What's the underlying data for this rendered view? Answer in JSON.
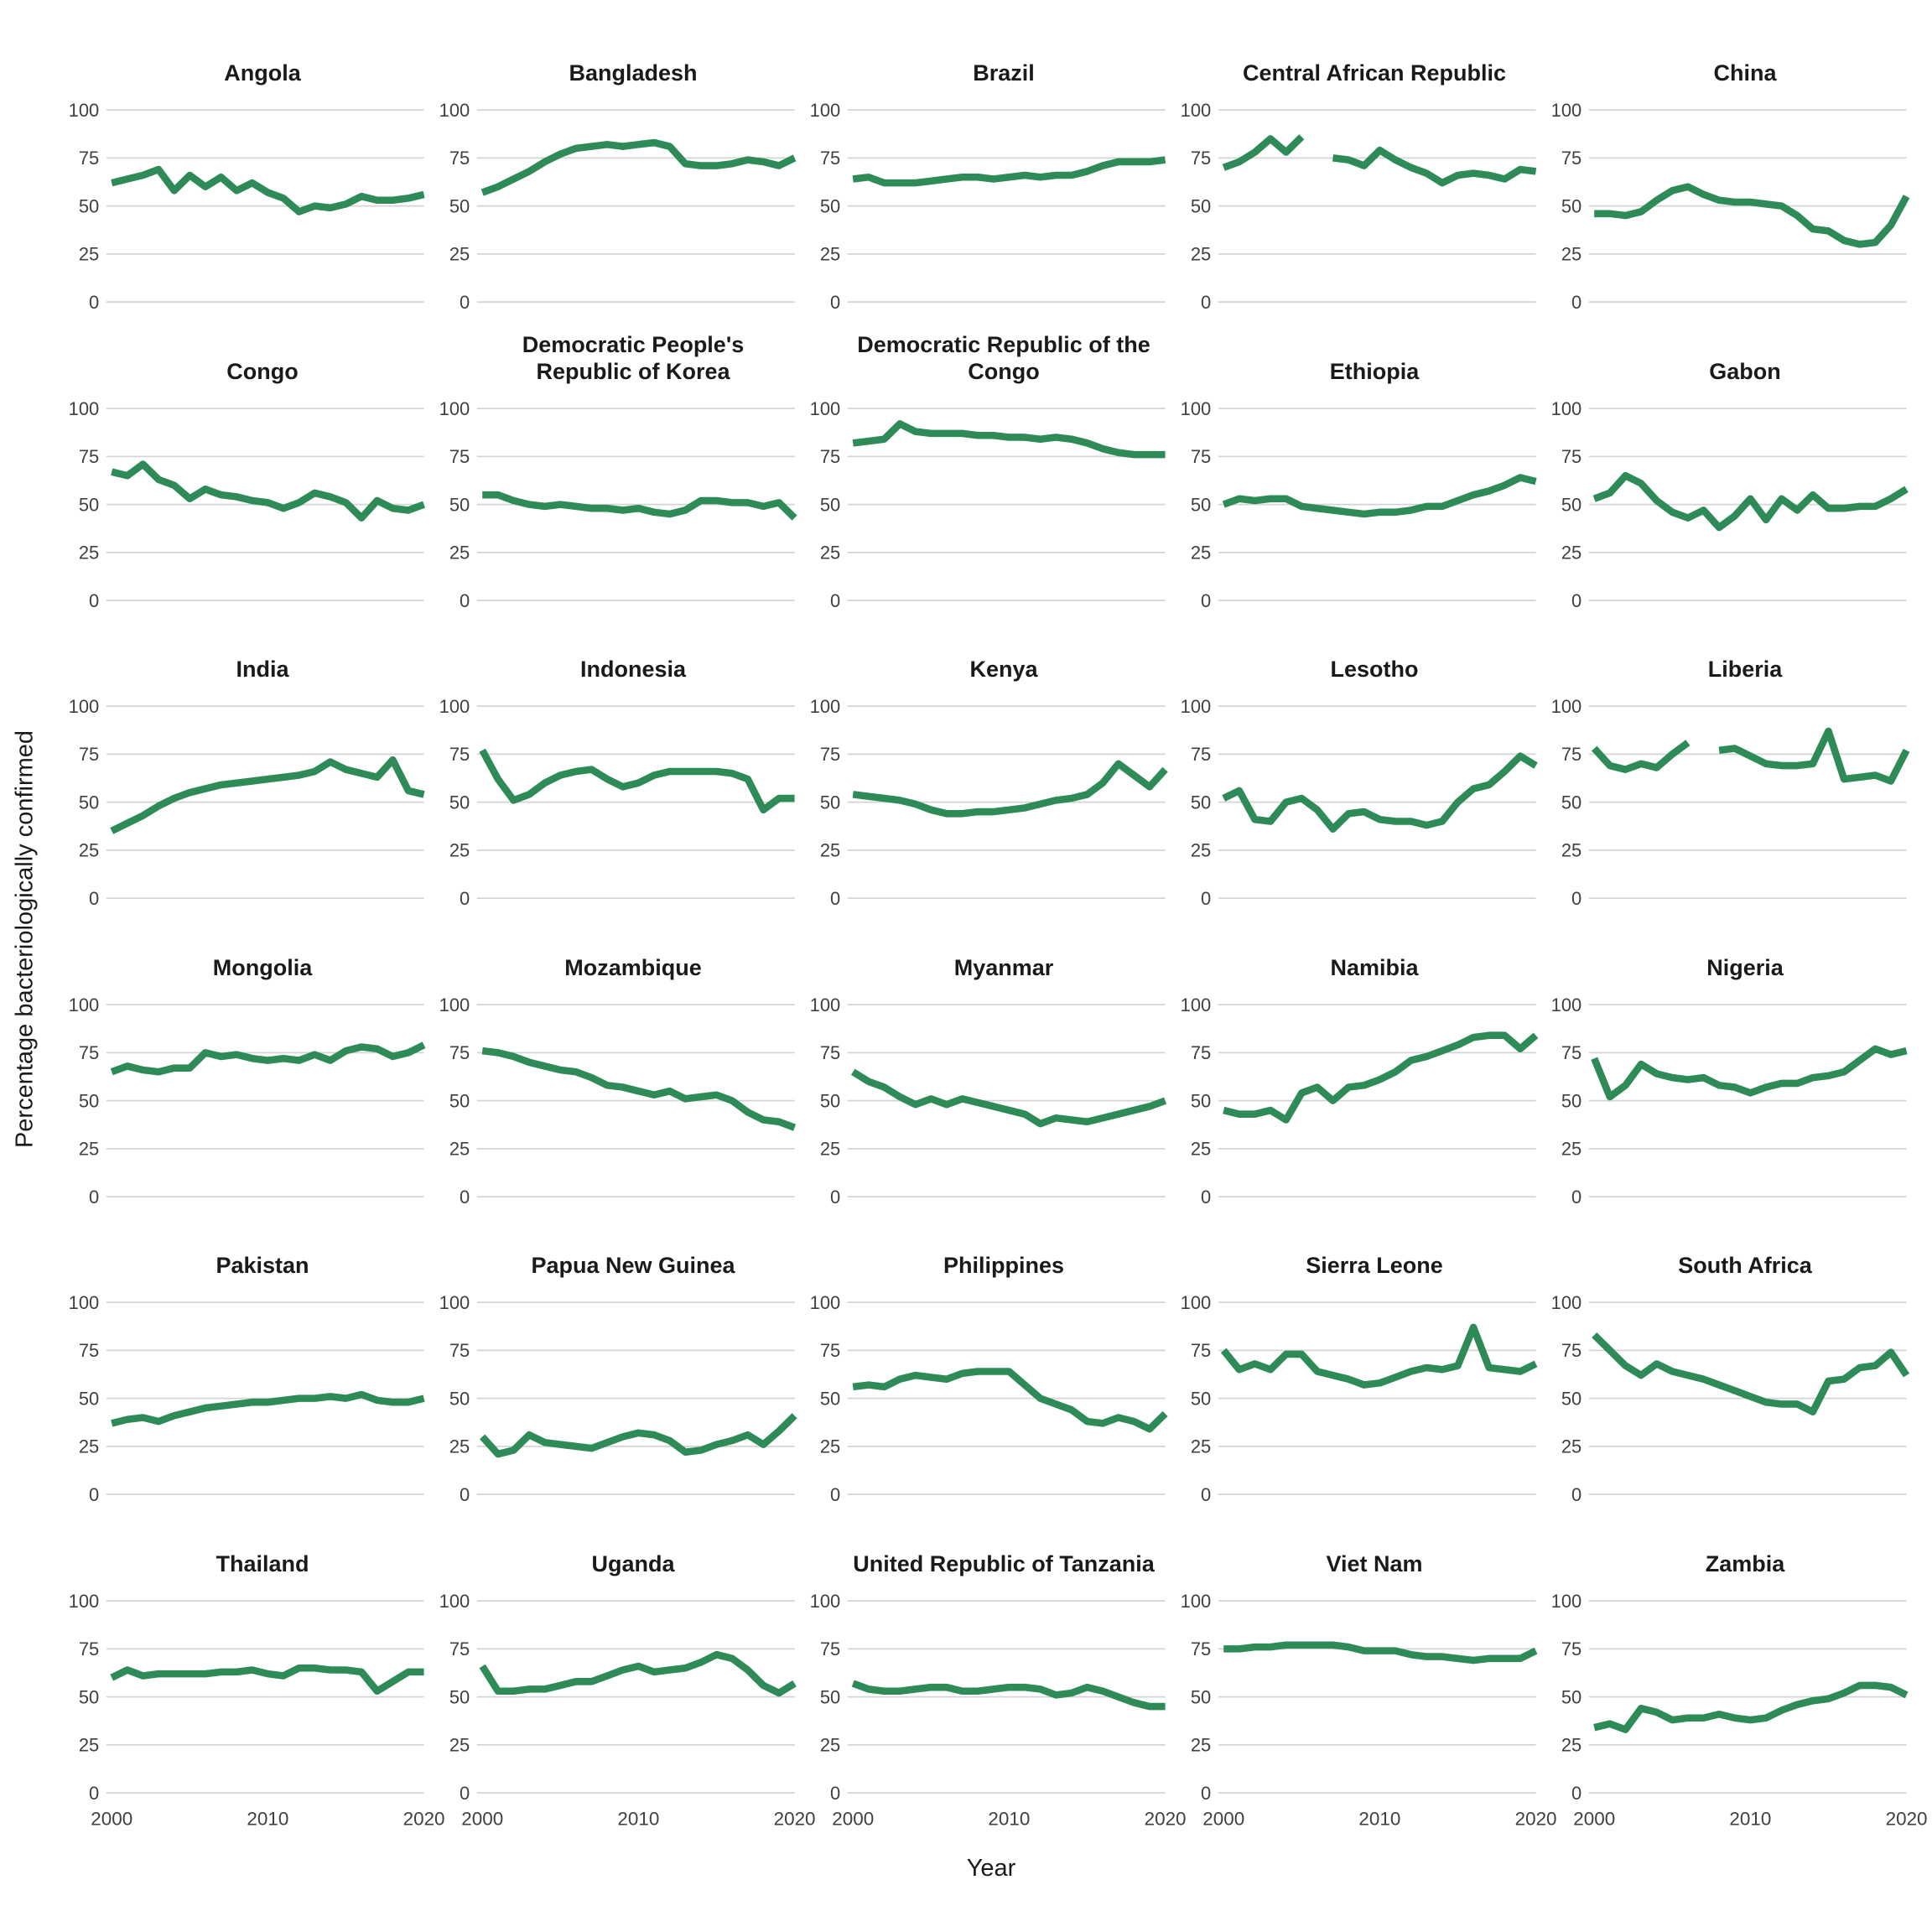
{
  "chart": {
    "ylabel": "Percentage bacteriologically confirmed",
    "xlabel": "Year",
    "line_color": "#2e8b57",
    "grid_color": "#d4d4d4",
    "tick_color": "#404040",
    "title_color": "#1a1a1a"
  },
  "chart_data": {
    "type": "line",
    "layout": "facet-grid 5 cols x 6 rows, one panel per country",
    "title": "",
    "xlabel": "Year",
    "ylabel": "Percentage bacteriologically confirmed",
    "legend": "none",
    "grid": "horizontal gridlines only",
    "xlim": [
      2000,
      2020
    ],
    "ylim": [
      0,
      100
    ],
    "x_ticks": [
      2000,
      2010,
      2020
    ],
    "y_ticks": [
      0,
      25,
      50,
      75,
      100
    ],
    "x": [
      2000,
      2001,
      2002,
      2003,
      2004,
      2005,
      2006,
      2007,
      2008,
      2009,
      2010,
      2011,
      2012,
      2013,
      2014,
      2015,
      2016,
      2017,
      2018,
      2019,
      2020
    ],
    "series": [
      {
        "name": "Angola",
        "values": [
          62,
          64,
          66,
          69,
          58,
          66,
          60,
          65,
          58,
          62,
          57,
          54,
          47,
          50,
          49,
          51,
          55,
          53,
          53,
          54,
          56
        ]
      },
      {
        "name": "Bangladesh",
        "values": [
          57,
          60,
          64,
          68,
          73,
          77,
          80,
          81,
          82,
          81,
          82,
          83,
          81,
          72,
          71,
          71,
          72,
          74,
          73,
          71,
          75
        ]
      },
      {
        "name": "Brazil",
        "values": [
          64,
          65,
          62,
          62,
          62,
          63,
          64,
          65,
          65,
          64,
          65,
          66,
          65,
          66,
          66,
          68,
          71,
          73,
          73,
          73,
          74
        ]
      },
      {
        "name": "Central African Republic",
        "values": [
          70,
          73,
          78,
          85,
          78,
          86,
          null,
          75,
          74,
          71,
          79,
          74,
          70,
          67,
          62,
          66,
          67,
          66,
          64,
          69,
          68
        ]
      },
      {
        "name": "China",
        "values": [
          46,
          46,
          45,
          47,
          53,
          58,
          60,
          56,
          53,
          52,
          52,
          51,
          50,
          45,
          38,
          37,
          32,
          30,
          31,
          40,
          55
        ]
      },
      {
        "name": "Congo",
        "values": [
          67,
          65,
          71,
          63,
          60,
          53,
          58,
          55,
          54,
          52,
          51,
          48,
          51,
          56,
          54,
          51,
          43,
          52,
          48,
          47,
          50
        ]
      },
      {
        "name": "Democratic People's Republic of Korea",
        "values": [
          55,
          55,
          52,
          50,
          49,
          50,
          49,
          48,
          48,
          47,
          48,
          46,
          45,
          47,
          52,
          52,
          51,
          51,
          49,
          51,
          43
        ]
      },
      {
        "name": "Democratic Republic of the Congo",
        "values": [
          82,
          83,
          84,
          92,
          88,
          87,
          87,
          87,
          86,
          86,
          85,
          85,
          84,
          85,
          84,
          82,
          79,
          77,
          76,
          76,
          76
        ]
      },
      {
        "name": "Ethiopia",
        "values": [
          50,
          53,
          52,
          53,
          53,
          49,
          48,
          47,
          46,
          45,
          46,
          46,
          47,
          49,
          49,
          52,
          55,
          57,
          60,
          64,
          62
        ]
      },
      {
        "name": "Gabon",
        "values": [
          53,
          56,
          65,
          61,
          52,
          46,
          43,
          47,
          38,
          44,
          53,
          42,
          53,
          47,
          55,
          48,
          48,
          49,
          49,
          53,
          58
        ]
      },
      {
        "name": "India",
        "values": [
          35,
          39,
          43,
          48,
          52,
          55,
          57,
          59,
          60,
          61,
          62,
          63,
          64,
          66,
          71,
          67,
          65,
          63,
          72,
          56,
          54
        ]
      },
      {
        "name": "Indonesia",
        "values": [
          77,
          62,
          51,
          54,
          60,
          64,
          66,
          67,
          62,
          58,
          60,
          64,
          66,
          66,
          66,
          66,
          65,
          62,
          46,
          52,
          52
        ]
      },
      {
        "name": "Kenya",
        "values": [
          54,
          53,
          52,
          51,
          49,
          46,
          44,
          44,
          45,
          45,
          46,
          47,
          49,
          51,
          52,
          54,
          60,
          70,
          64,
          58,
          67
        ]
      },
      {
        "name": "Lesotho",
        "values": [
          52,
          56,
          41,
          40,
          50,
          52,
          46,
          36,
          44,
          45,
          41,
          40,
          40,
          38,
          40,
          50,
          57,
          59,
          66,
          74,
          69
        ]
      },
      {
        "name": "Liberia",
        "values": [
          78,
          69,
          67,
          70,
          68,
          75,
          81,
          null,
          77,
          78,
          74,
          70,
          69,
          69,
          70,
          87,
          62,
          63,
          64,
          61,
          77
        ]
      },
      {
        "name": "Mongolia",
        "values": [
          65,
          68,
          66,
          65,
          67,
          67,
          75,
          73,
          74,
          72,
          71,
          72,
          71,
          74,
          71,
          76,
          78,
          77,
          73,
          75,
          79
        ]
      },
      {
        "name": "Mozambique",
        "values": [
          76,
          75,
          73,
          70,
          68,
          66,
          65,
          62,
          58,
          57,
          55,
          53,
          55,
          51,
          52,
          53,
          50,
          44,
          40,
          39,
          36
        ]
      },
      {
        "name": "Myanmar",
        "values": [
          65,
          60,
          57,
          52,
          48,
          51,
          48,
          51,
          49,
          47,
          45,
          43,
          38,
          41,
          40,
          39,
          41,
          43,
          45,
          47,
          50
        ]
      },
      {
        "name": "Namibia",
        "values": [
          45,
          43,
          43,
          45,
          40,
          54,
          57,
          50,
          57,
          58,
          61,
          65,
          71,
          73,
          76,
          79,
          83,
          84,
          84,
          77,
          84
        ]
      },
      {
        "name": "Nigeria",
        "values": [
          72,
          52,
          58,
          69,
          64,
          62,
          61,
          62,
          58,
          57,
          54,
          57,
          59,
          59,
          62,
          63,
          65,
          71,
          77,
          74,
          76
        ]
      },
      {
        "name": "Pakistan",
        "values": [
          37,
          39,
          40,
          38,
          41,
          43,
          45,
          46,
          47,
          48,
          48,
          49,
          50,
          50,
          51,
          50,
          52,
          49,
          48,
          48,
          50
        ]
      },
      {
        "name": "Papua New Guinea",
        "values": [
          30,
          21,
          23,
          31,
          27,
          26,
          25,
          24,
          27,
          30,
          32,
          31,
          28,
          22,
          23,
          26,
          28,
          31,
          26,
          33,
          41
        ]
      },
      {
        "name": "Philippines",
        "values": [
          56,
          57,
          56,
          60,
          62,
          61,
          60,
          63,
          64,
          64,
          64,
          57,
          50,
          47,
          44,
          38,
          37,
          40,
          38,
          34,
          42
        ]
      },
      {
        "name": "Sierra Leone",
        "values": [
          75,
          65,
          68,
          65,
          73,
          73,
          64,
          62,
          60,
          57,
          58,
          61,
          64,
          66,
          65,
          67,
          87,
          66,
          65,
          64,
          68
        ]
      },
      {
        "name": "South Africa",
        "values": [
          83,
          75,
          67,
          62,
          68,
          64,
          62,
          60,
          57,
          54,
          51,
          48,
          47,
          47,
          43,
          59,
          60,
          66,
          67,
          74,
          62
        ]
      },
      {
        "name": "Thailand",
        "values": [
          60,
          64,
          61,
          62,
          62,
          62,
          62,
          63,
          63,
          64,
          62,
          61,
          65,
          65,
          64,
          64,
          63,
          53,
          58,
          63,
          63
        ]
      },
      {
        "name": "Uganda",
        "values": [
          66,
          53,
          53,
          54,
          54,
          56,
          58,
          58,
          61,
          64,
          66,
          63,
          64,
          65,
          68,
          72,
          70,
          64,
          56,
          52,
          57
        ]
      },
      {
        "name": "United Republic of Tanzania",
        "values": [
          57,
          54,
          53,
          53,
          54,
          55,
          55,
          53,
          53,
          54,
          55,
          55,
          54,
          51,
          52,
          55,
          53,
          50,
          47,
          45,
          45
        ]
      },
      {
        "name": "Viet Nam",
        "values": [
          75,
          75,
          76,
          76,
          77,
          77,
          77,
          77,
          76,
          74,
          74,
          74,
          72,
          71,
          71,
          70,
          69,
          70,
          70,
          70,
          74
        ]
      },
      {
        "name": "Zambia",
        "values": [
          34,
          36,
          33,
          44,
          42,
          38,
          39,
          39,
          41,
          39,
          38,
          39,
          43,
          46,
          48,
          49,
          52,
          56,
          56,
          55,
          51
        ]
      }
    ]
  }
}
